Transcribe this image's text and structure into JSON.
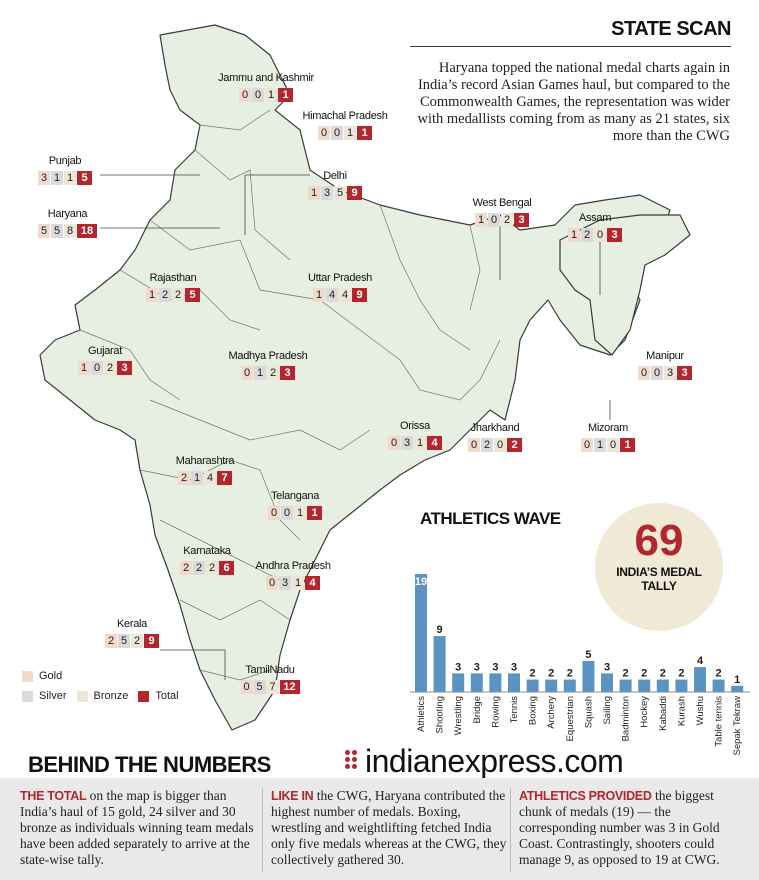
{
  "header": {
    "title": "STATE SCAN",
    "intro": "Haryana topped the national medal charts again in India’s record Asian Games haul, but compared to the Commonwealth Games, the representation was wider with medallists coming from as many as 21 states, six more than the CWG"
  },
  "states": [
    {
      "name": "Jammu and Kashmir",
      "gold": "0",
      "silver": "0",
      "bronze": "1",
      "total": "1"
    },
    {
      "name": "Himachal Pradesh",
      "gold": "0",
      "silver": "0",
      "bronze": "1",
      "total": "1"
    },
    {
      "name": "Punjab",
      "gold": "3",
      "silver": "1",
      "bronze": "1",
      "total": "5"
    },
    {
      "name": "Delhi",
      "gold": "1",
      "silver": "3",
      "bronze": "5",
      "total": "9"
    },
    {
      "name": "Haryana",
      "gold": "5",
      "silver": "5",
      "bronze": "8",
      "total": "18"
    },
    {
      "name": "West Bengal",
      "gold": "1",
      "silver": "0",
      "bronze": "2",
      "total": "3"
    },
    {
      "name": "Assam",
      "gold": "1",
      "silver": "2",
      "bronze": "0",
      "total": "3"
    },
    {
      "name": "Rajasthan",
      "gold": "1",
      "silver": "2",
      "bronze": "2",
      "total": "5"
    },
    {
      "name": "Uttar Pradesh",
      "gold": "1",
      "silver": "4",
      "bronze": "4",
      "total": "9"
    },
    {
      "name": "Gujarat",
      "gold": "1",
      "silver": "0",
      "bronze": "2",
      "total": "3"
    },
    {
      "name": "Madhya Pradesh",
      "gold": "0",
      "silver": "1",
      "bronze": "2",
      "total": "3"
    },
    {
      "name": "Manipur",
      "gold": "0",
      "silver": "0",
      "bronze": "3",
      "total": "3"
    },
    {
      "name": "Orissa",
      "gold": "0",
      "silver": "3",
      "bronze": "1",
      "total": "4"
    },
    {
      "name": "Jharkhand",
      "gold": "0",
      "silver": "2",
      "bronze": "0",
      "total": "2"
    },
    {
      "name": "Mizoram",
      "gold": "0",
      "silver": "1",
      "bronze": "0",
      "total": "1"
    },
    {
      "name": "Maharashtra",
      "gold": "2",
      "silver": "1",
      "bronze": "4",
      "total": "7"
    },
    {
      "name": "Telangana",
      "gold": "0",
      "silver": "0",
      "bronze": "1",
      "total": "1"
    },
    {
      "name": "Karnataka",
      "gold": "2",
      "silver": "2",
      "bronze": "2",
      "total": "6"
    },
    {
      "name": "Andhra Pradesh",
      "gold": "0",
      "silver": "3",
      "bronze": "1",
      "total": "4"
    },
    {
      "name": "Kerala",
      "gold": "2",
      "silver": "5",
      "bronze": "2",
      "total": "9"
    },
    {
      "name": "TamilNadu",
      "gold": "0",
      "silver": "5",
      "bronze": "7",
      "total": "12"
    }
  ],
  "legend": {
    "gold": "Gold",
    "silver": "Silver",
    "bronze": "Bronze",
    "total": "Total"
  },
  "tally": {
    "value": "69",
    "label": "INDIA’S MEDAL TALLY"
  },
  "chart_title": "ATHLETICS WAVE",
  "chart_data": {
    "type": "bar",
    "categories": [
      "Athletics",
      "Shooting",
      "Wrestling",
      "Bridge",
      "Rowing",
      "Tennis",
      "Boxing",
      "Archery",
      "Equestrian",
      "Squash",
      "Sailing",
      "Badminton",
      "Hockey",
      "Kabaddi",
      "Kurash",
      "Wushu",
      "Table tennis",
      "Sepak Tekraw"
    ],
    "values": [
      19,
      9,
      3,
      3,
      3,
      3,
      2,
      2,
      2,
      5,
      3,
      2,
      2,
      2,
      2,
      4,
      2,
      1
    ],
    "title": "ATHLETICS WAVE",
    "ylim": [
      0,
      19
    ],
    "bar_color": "#5b93c2",
    "grid": false
  },
  "bottom": {
    "title": "BEHIND THE NUMBERS",
    "logo": "indianexpress.com",
    "col1_lead": "THE TOTAL",
    "col1_text": " on the map is bigger than India’s haul of 15 gold, 24 silver and 30 bronze as individuals winning team medals have been added separately to arrive at the state-wise tally.",
    "col2_lead": "LIKE IN",
    "col2_text": " the CWG, Haryana contributed the highest number of medals. Boxing, wrestling and weightlifting fetched India only five medals whereas at the CWG, they collectively gathered 30.",
    "col3_lead": "ATHLETICS PROVIDED",
    "col3_text": " the biggest chunk of medals (19) — the corresponding number was 3 in Gold Coast. Contrastingly, shooters could manage 9, as opposed to 19 at CWG."
  },
  "colors": {
    "accent": "#b3262d",
    "map_fill": "#e6efe1",
    "bar": "#5b93c2"
  }
}
